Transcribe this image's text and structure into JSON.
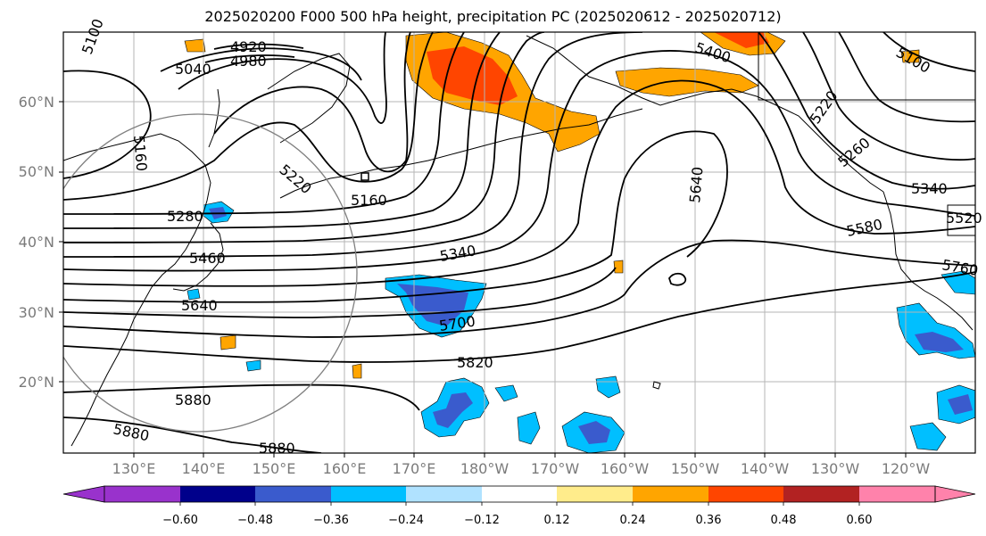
{
  "title": "2025020200 F000 500 hPa height, precipitation PC (2025020612 - 2025020712)",
  "map": {
    "lat_labels": [
      "60°N",
      "50°N",
      "40°N",
      "30°N",
      "20°N"
    ],
    "lon_labels": [
      "130°E",
      "140°E",
      "150°E",
      "160°E",
      "170°E",
      "180°W",
      "170°W",
      "160°W",
      "150°W",
      "140°W",
      "130°W",
      "120°W"
    ],
    "contour_labels": [
      "4920",
      "4980",
      "5040",
      "5160",
      "5220",
      "5160",
      "5280",
      "5340",
      "5400",
      "5460",
      "5640",
      "5700",
      "5820",
      "5880",
      "5880",
      "5880",
      "5640",
      "5220",
      "5260",
      "5340",
      "5580",
      "5760",
      "5100",
      "5100",
      "5520"
    ],
    "contour_color": "#000000",
    "grid_color": "#b5b5b5",
    "coastline_color": "#000000"
  },
  "colorbar": {
    "ticks": [
      "−0.60",
      "−0.48",
      "−0.36",
      "−0.24",
      "−0.12",
      "0.12",
      "0.24",
      "0.36",
      "0.48",
      "0.60"
    ],
    "colors": [
      "#9932cc",
      "#00008b",
      "#3a5bcd",
      "#00bfff",
      "#b0e2ff",
      "#ffffff",
      "#ffec8b",
      "#ffa500",
      "#ff4500",
      "#b22222",
      "#ff82ab"
    ]
  },
  "precip_colors": {
    "neg_light": "#b0e2ff",
    "neg_mid": "#00bfff",
    "neg_strong": "#3a5bcd",
    "pos_light": "#ffec8b",
    "pos_mid": "#ffa500",
    "pos_strong": "#ff4500"
  }
}
